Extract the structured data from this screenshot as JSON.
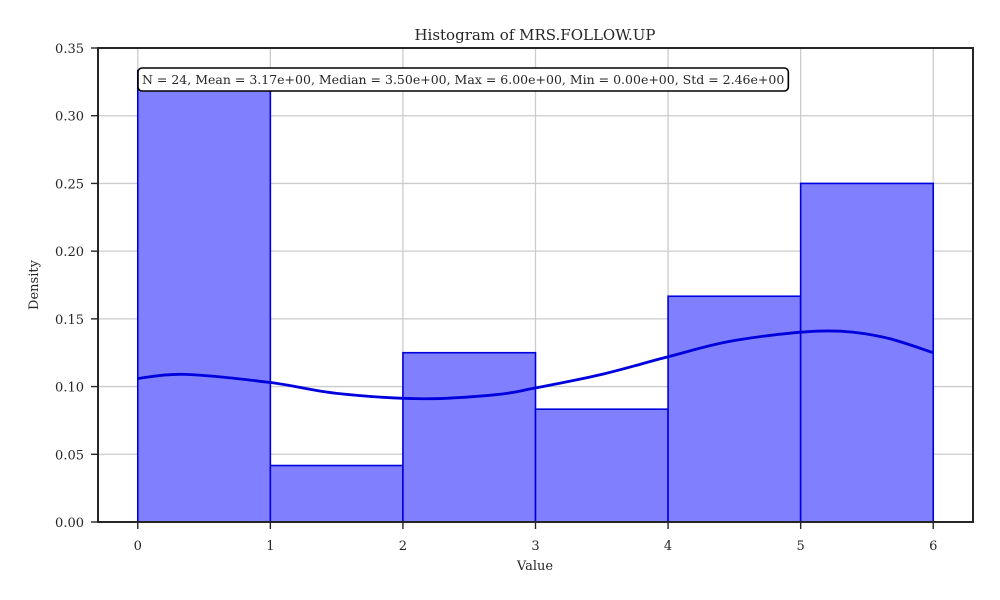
{
  "chart_data": {
    "type": "histogram",
    "title": "Histogram of MRS.FOLLOW.UP",
    "xlabel": "Value",
    "ylabel": "Density",
    "xlim": [
      -0.3,
      6.3
    ],
    "ylim": [
      0,
      0.35
    ],
    "x_ticks": [
      "0",
      "1",
      "2",
      "3",
      "4",
      "5",
      "6"
    ],
    "y_ticks": [
      "0.00",
      "0.05",
      "0.10",
      "0.15",
      "0.20",
      "0.25",
      "0.30",
      "0.35"
    ],
    "bins": [
      {
        "x0": 0,
        "x1": 1,
        "density": 0.3333
      },
      {
        "x0": 1,
        "x1": 2,
        "density": 0.0417
      },
      {
        "x0": 2,
        "x1": 3,
        "density": 0.125
      },
      {
        "x0": 3,
        "x1": 4,
        "density": 0.0833
      },
      {
        "x0": 4,
        "x1": 5,
        "density": 0.1667
      },
      {
        "x0": 5,
        "x1": 6,
        "density": 0.25
      }
    ],
    "kde": {
      "x": [
        0,
        0.35,
        1,
        1.5,
        2.15,
        2.7,
        3,
        3.5,
        4,
        4.5,
        5.15,
        5.6,
        6
      ],
      "y": [
        0.106,
        0.109,
        0.103,
        0.095,
        0.091,
        0.094,
        0.099,
        0.109,
        0.122,
        0.134,
        0.141,
        0.137,
        0.125
      ]
    },
    "stats_text": "N = 24, Mean = 3.17e+00, Median = 3.50e+00, Max = 6.00e+00, Min = 0.00e+00, Std = 2.46e+00",
    "grid": true,
    "colors": {
      "bar_fill": "#8080ff",
      "bar_edge": "#0000dd",
      "kde_line": "#0000dd",
      "axis": "#262626",
      "grid": "#cccccc"
    }
  }
}
